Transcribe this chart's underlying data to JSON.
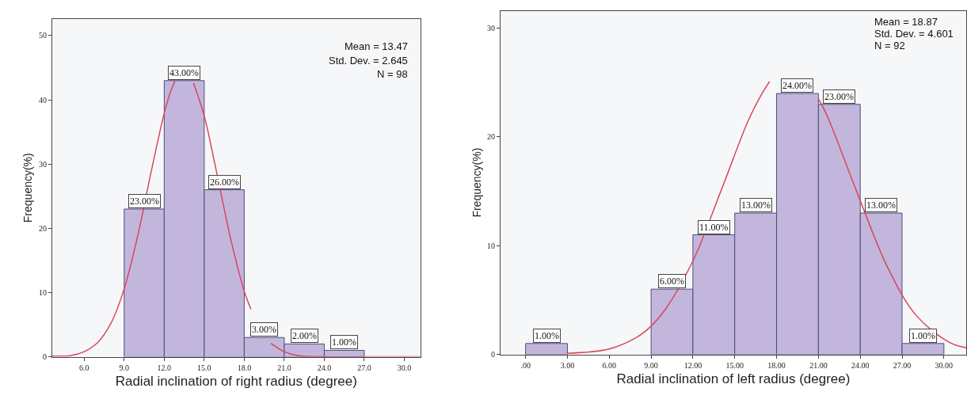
{
  "chart_data": [
    {
      "type": "histogram",
      "xlabel": "Radial inclination of right radius (degree)",
      "ylabel": "Frequency(%)",
      "bins": [
        9,
        12,
        15,
        18,
        21,
        24,
        27
      ],
      "values": [
        23,
        43,
        26,
        3,
        2,
        1
      ],
      "value_labels": [
        "23.00%",
        "43.00%",
        "26.00%",
        "3.00%",
        "2.00%",
        "1.00%"
      ],
      "color": "#c3b6dd",
      "series": [
        {
          "type": "line",
          "color": "#d9475a",
          "x": [
            3.6,
            5,
            6,
            7,
            8,
            9,
            10,
            11,
            12,
            12.5,
            12.8,
            13.5,
            14.2,
            15,
            15.8,
            16.6,
            17,
            18,
            18.5,
            19,
            20,
            21,
            22,
            24,
            27,
            31.2
          ],
          "values": [
            0.1,
            0.2,
            0.8,
            2.2,
            5.2,
            10.6,
            18.7,
            28.6,
            37.9,
            41.4,
            42.9,
            null,
            42.6,
            37.5,
            30,
            22,
            18.2,
            10.2,
            7.4,
            null,
            2.1,
            0.8,
            0.2,
            0,
            0,
            0
          ]
        }
      ],
      "annotations": [
        "Mean = 13.47",
        "Std. Dev. = 2.645",
        "N = 98"
      ],
      "xlim": [
        3.6,
        31.2
      ],
      "xticks": [
        {
          "value": 6,
          "label": "6.0"
        },
        {
          "value": 9,
          "label": "9.0"
        },
        {
          "value": 12,
          "label": "12.0"
        },
        {
          "value": 15,
          "label": "15.0"
        },
        {
          "value": 18,
          "label": "18.0"
        },
        {
          "value": 21,
          "label": "21.0"
        },
        {
          "value": 24,
          "label": "24.0"
        },
        {
          "value": 27,
          "label": "27.0"
        },
        {
          "value": 30,
          "label": "30.0"
        }
      ],
      "ylim": [
        0,
        52.6
      ],
      "yticks": [
        0,
        10,
        20,
        30,
        40,
        50
      ]
    },
    {
      "type": "histogram",
      "xlabel": "Radial inclination of left radius (degree)",
      "ylabel": "Frequency(%)",
      "bins": [
        0,
        3,
        6,
        9,
        12,
        15,
        18,
        21,
        24,
        27,
        30
      ],
      "values": [
        1,
        0,
        0,
        6,
        11,
        13,
        24,
        23,
        13,
        1
      ],
      "value_labels": [
        "1.00%",
        null,
        null,
        "6.00%",
        "11.00%",
        "13.00%",
        "24.00%",
        "23.00%",
        "13.00%",
        "1.00%"
      ],
      "color": "#c3b6dd",
      "series": [
        {
          "type": "line",
          "color": "#d9475a",
          "x": [
            3,
            6,
            8,
            9,
            10,
            12,
            14,
            16,
            17,
            17.5,
            19,
            21,
            21.5,
            22,
            23.8,
            26,
            28,
            30.4,
            31.6
          ],
          "values": [
            0.1,
            0.5,
            1.6,
            2.6,
            4.1,
            8.6,
            15,
            21.6,
            24.1,
            25.1,
            null,
            23.5,
            22.3,
            20.8,
            14.8,
            7.9,
            3.6,
            1.1,
            0.6
          ]
        }
      ],
      "annotations": [
        "Mean = 18.87",
        "Std. Dev. = 4.601",
        "N = 92"
      ],
      "xlim": [
        -1.8,
        31.6
      ],
      "xticks": [
        {
          "value": 0,
          "label": ".00"
        },
        {
          "value": 3,
          "label": "3.00"
        },
        {
          "value": 6,
          "label": "6.00"
        },
        {
          "value": 9,
          "label": "9.00"
        },
        {
          "value": 12,
          "label": "12.00"
        },
        {
          "value": 15,
          "label": "15.00"
        },
        {
          "value": 18,
          "label": "18.00"
        },
        {
          "value": 21,
          "label": "21.00"
        },
        {
          "value": 24,
          "label": "24.00"
        },
        {
          "value": 27,
          "label": "27.00"
        },
        {
          "value": 30,
          "label": "30.00"
        }
      ],
      "ylim": [
        0,
        31.6
      ],
      "yticks": [
        0,
        10,
        20,
        30
      ]
    }
  ]
}
